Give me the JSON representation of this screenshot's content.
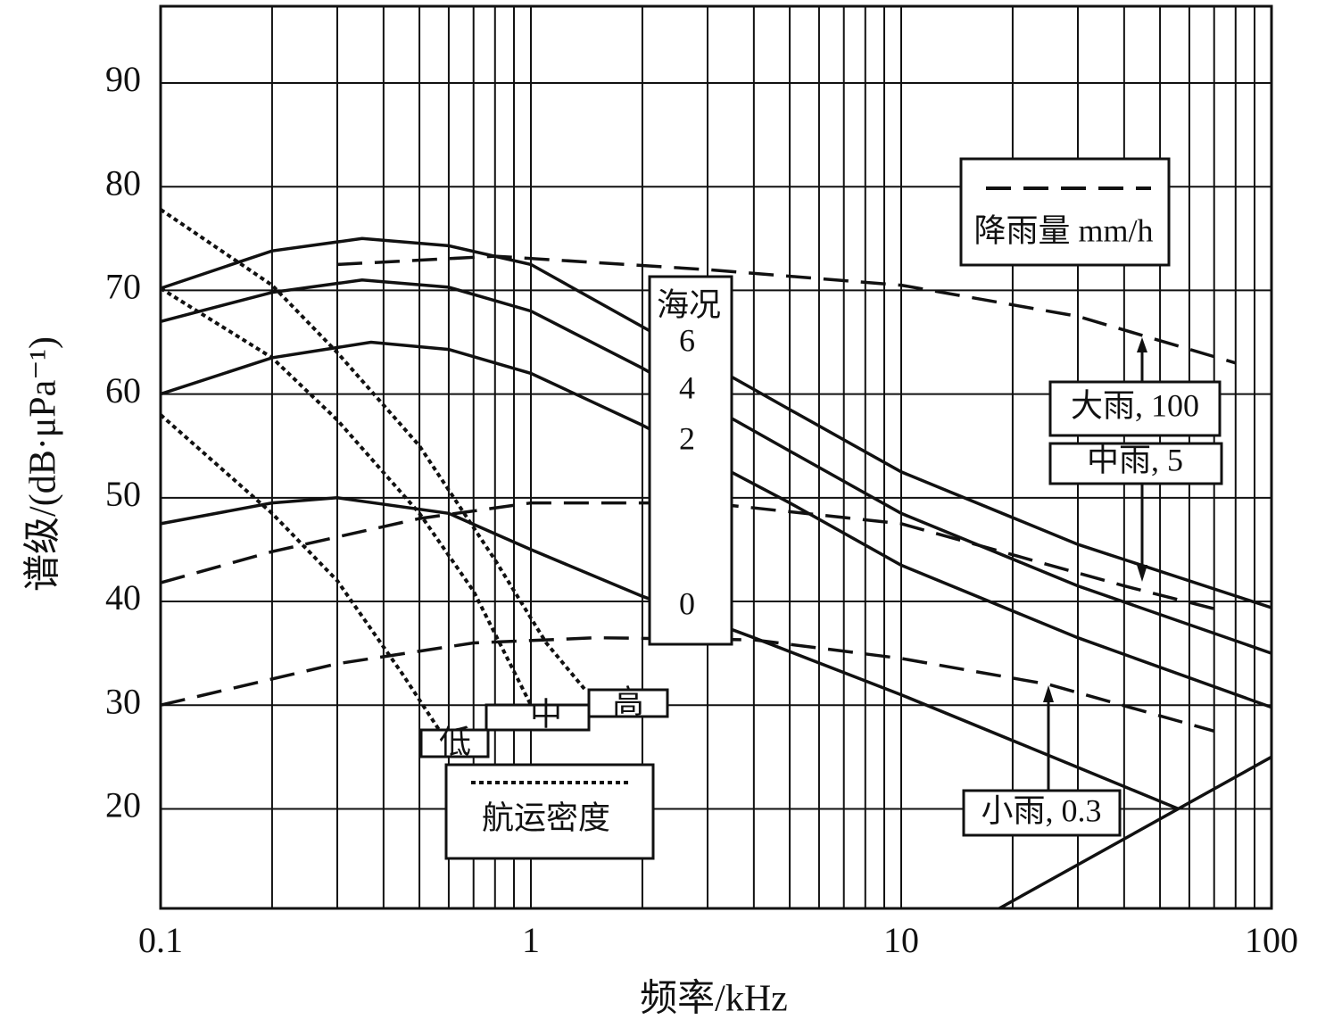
{
  "chart_data": {
    "type": "line",
    "xscale": "log",
    "grid": true,
    "x_label": "频率/kHz",
    "y_label": "谱级/(dB·μPa⁻¹)",
    "xlim": [
      0.1,
      100
    ],
    "ylim": [
      10.4,
      97.4
    ],
    "xticks": [
      0.1,
      1,
      10,
      100
    ],
    "xgrid_minor": [
      0.2,
      0.3,
      0.4,
      0.5,
      0.6,
      0.7,
      0.8,
      0.9,
      2,
      3,
      4,
      5,
      6,
      7,
      8,
      9,
      20,
      30,
      40,
      50,
      60,
      70,
      80,
      90
    ],
    "yticks": [
      20,
      30,
      40,
      50,
      60,
      70,
      80,
      90
    ],
    "sea_state_title": "海况",
    "legends": [
      {
        "title": "降雨量 mm/h",
        "style": "dashed"
      },
      {
        "title": "航运密度",
        "style": "dotted"
      }
    ],
    "series": [
      {
        "name": "6",
        "color": "#111111",
        "style": "solid",
        "x": [
          0.1,
          0.2,
          0.35,
          0.6,
          1,
          2,
          5,
          10,
          30,
          100
        ],
        "values": [
          70.2,
          73.8,
          75,
          74.3,
          72.5,
          66.5,
          58.5,
          52.5,
          45.5,
          39.4
        ]
      },
      {
        "name": "4",
        "color": "#111111",
        "style": "solid",
        "x": [
          0.1,
          0.2,
          0.35,
          0.6,
          1,
          2,
          5,
          10,
          30,
          100
        ],
        "values": [
          67,
          69.8,
          71,
          70.3,
          68,
          62.5,
          54.5,
          48.5,
          41.5,
          35
        ]
      },
      {
        "name": "2",
        "color": "#111111",
        "style": "solid",
        "x": [
          0.1,
          0.2,
          0.37,
          0.6,
          1,
          2,
          5,
          10,
          30,
          100
        ],
        "values": [
          60,
          63.5,
          65,
          64.3,
          62,
          57,
          49.5,
          43.5,
          36.5,
          29.8
        ]
      },
      {
        "name": "0",
        "color": "#111111",
        "style": "solid",
        "x": [
          0.1,
          0.2,
          0.3,
          0.6,
          1,
          2,
          4,
          10,
          30,
          56
        ],
        "values": [
          47.5,
          49.5,
          50,
          48.5,
          45,
          40.5,
          36.5,
          31,
          24,
          20
        ]
      },
      {
        "color": "#111111",
        "style": "solid",
        "x": [
          18.4,
          100
        ],
        "values": [
          10.4,
          25
        ]
      },
      {
        "name": "大雨, 100",
        "color": "#111111",
        "style": "dashed",
        "x": [
          0.3,
          0.8,
          3,
          10,
          30,
          80
        ],
        "values": [
          72.5,
          73.3,
          72,
          70.5,
          67.5,
          63
        ]
      },
      {
        "name": "中雨, 5",
        "color": "#111111",
        "style": "dashed",
        "x": [
          0.1,
          0.2,
          0.5,
          1,
          3,
          10,
          20,
          40,
          70
        ],
        "values": [
          41.8,
          44.8,
          48,
          49.5,
          49.5,
          47.5,
          44.5,
          41.5,
          39.3
        ]
      },
      {
        "name": "小雨, 0.3",
        "color": "#111111",
        "style": "dashed",
        "x": [
          0.1,
          0.3,
          0.7,
          1.5,
          4,
          10,
          25,
          70
        ],
        "values": [
          30,
          34,
          36,
          36.5,
          36.3,
          34.5,
          32,
          27.5
        ]
      },
      {
        "name": "高",
        "color": "#111111",
        "style": "dotted",
        "x": [
          0.1,
          0.2,
          0.3,
          0.5,
          0.8,
          1.1,
          1.4
        ],
        "values": [
          77.8,
          70.5,
          64,
          55,
          44,
          36,
          31.5
        ]
      },
      {
        "name": "中",
        "color": "#111111",
        "style": "dotted",
        "x": [
          0.1,
          0.2,
          0.3,
          0.5,
          0.7,
          1
        ],
        "values": [
          70.2,
          63.5,
          57.5,
          48.5,
          41,
          30
        ]
      },
      {
        "name": "低",
        "color": "#111111",
        "style": "dotted",
        "x": [
          0.1,
          0.2,
          0.3,
          0.45,
          0.58
        ],
        "values": [
          58,
          48.5,
          42,
          33,
          27
        ]
      }
    ]
  }
}
